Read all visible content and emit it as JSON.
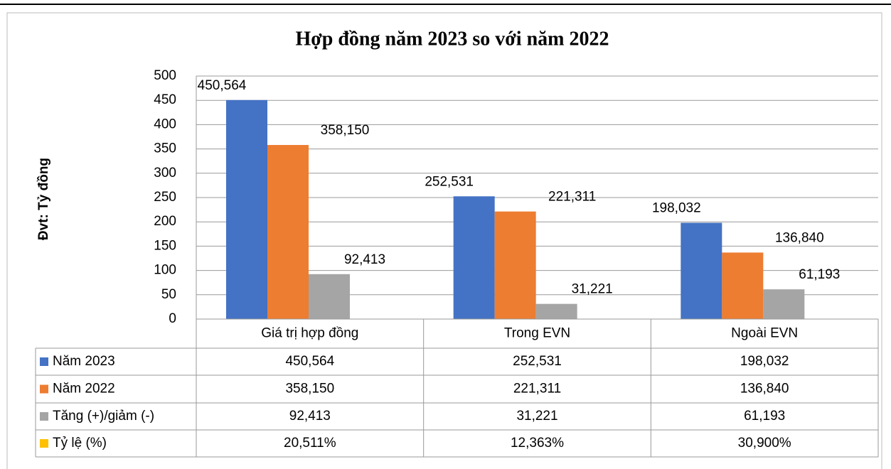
{
  "chart_data": {
    "type": "bar",
    "title": "Hợp đồng năm 2023 so với năm 2022",
    "y_label": "Đvt: Tỷ đồng",
    "categories": [
      "Giá trị hợp đồng",
      "Trong EVN",
      "Ngoài EVN"
    ],
    "ylim": [
      0,
      500
    ],
    "yticks": [
      0,
      50,
      100,
      150,
      200,
      250,
      300,
      350,
      400,
      450,
      500
    ],
    "grid": true,
    "series": [
      {
        "name": "Năm 2023",
        "color": "#4472c4",
        "values": [
          450.564,
          252.531,
          198.032
        ],
        "value_labels": [
          "450,564",
          "252,531",
          "198,032"
        ]
      },
      {
        "name": "Năm 2022",
        "color": "#ed7d31",
        "values": [
          358.15,
          221.311,
          136.84
        ],
        "value_labels": [
          "358,150",
          "221,311",
          "136,840"
        ]
      },
      {
        "name": "Tăng (+)/giảm (-)",
        "color": "#a5a5a5",
        "values": [
          92.413,
          31.221,
          61.193
        ],
        "value_labels": [
          "92,413",
          "31,221",
          "61,193"
        ]
      },
      {
        "name": "Tỷ lệ (%)",
        "color": "#ffc000",
        "values": [
          20.511,
          12.363,
          30.9
        ],
        "value_labels": [
          "20,511%",
          "12,363%",
          "30,900%"
        ],
        "in_table_only": true
      }
    ]
  }
}
